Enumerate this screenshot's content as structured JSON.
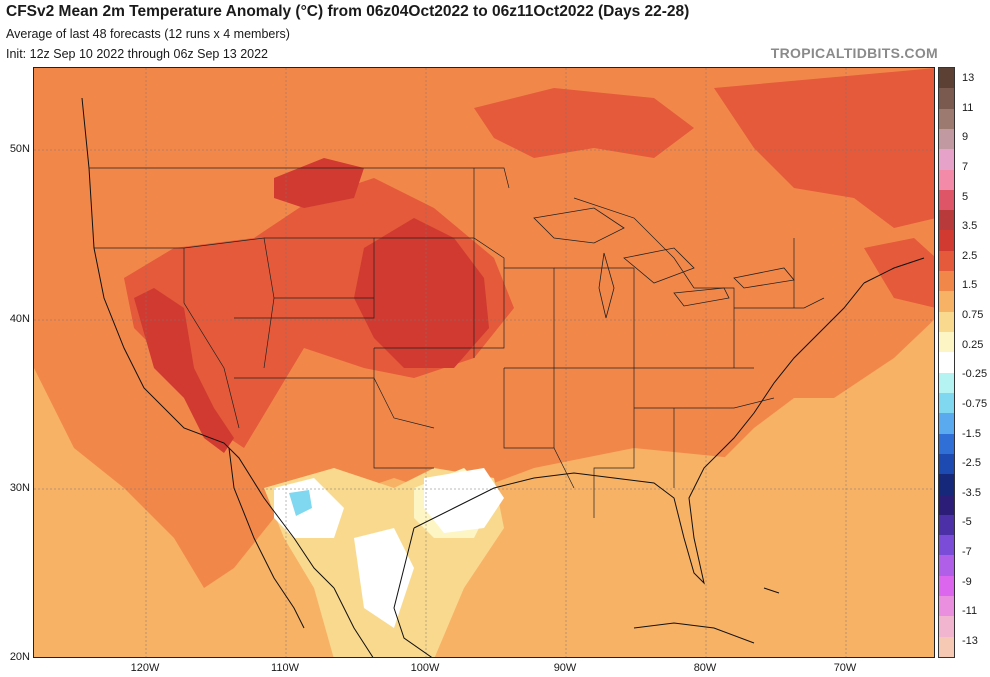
{
  "header": {
    "title": "CFSv2 Mean 2m Temperature Anomaly (°C) from 06z04Oct2022 to 06z11Oct2022 (Days 22-28)",
    "subtitle": "Average of last 48 forecasts (12 runs x 4 members)",
    "init": "Init: 12z Sep 10 2022 through 06z Sep 13 2022",
    "credit": "TROPICALTIDBITS.COM"
  },
  "axes": {
    "lat_labels": [
      "50N",
      "40N",
      "30N",
      "20N"
    ],
    "lon_labels": [
      "120W",
      "110W",
      "100W",
      "90W",
      "80W",
      "70W"
    ]
  },
  "colorbar": {
    "labels": [
      "13",
      "11",
      "9",
      "7",
      "5",
      "3.5",
      "2.5",
      "1.5",
      "0.75",
      "0.25",
      "-0.25",
      "-0.75",
      "-1.5",
      "-2.5",
      "-3.5",
      "-5",
      "-7",
      "-9",
      "-11",
      "-13"
    ],
    "colors": [
      "#5c4033",
      "#7a5a4e",
      "#9c7a70",
      "#c09aa0",
      "#e6a2c8",
      "#f28aa8",
      "#dd5566",
      "#b93a3a",
      "#d03a30",
      "#e45a3a",
      "#f2874a",
      "#f7b266",
      "#f9d98e",
      "#fdf5c4",
      "#ffffff",
      "#b5f2f2",
      "#7fd8f0",
      "#5aaaf0",
      "#2f6fd6",
      "#1d4ab0",
      "#16287a",
      "#2c1e78",
      "#4b30a8",
      "#7a4cd8",
      "#b060e8",
      "#dd66ee",
      "#ea8fdf",
      "#f2b5d0",
      "#f6c9b5"
    ]
  },
  "colors": {
    "background_warm": "#f7b266",
    "anomaly_1_5": "#f2874a",
    "anomaly_2_5": "#e45a3a",
    "anomaly_3_5": "#d03a30",
    "neutral_pos": "#f9d98e",
    "neutral": "#ffffff",
    "cool": "#7fd8f0"
  }
}
